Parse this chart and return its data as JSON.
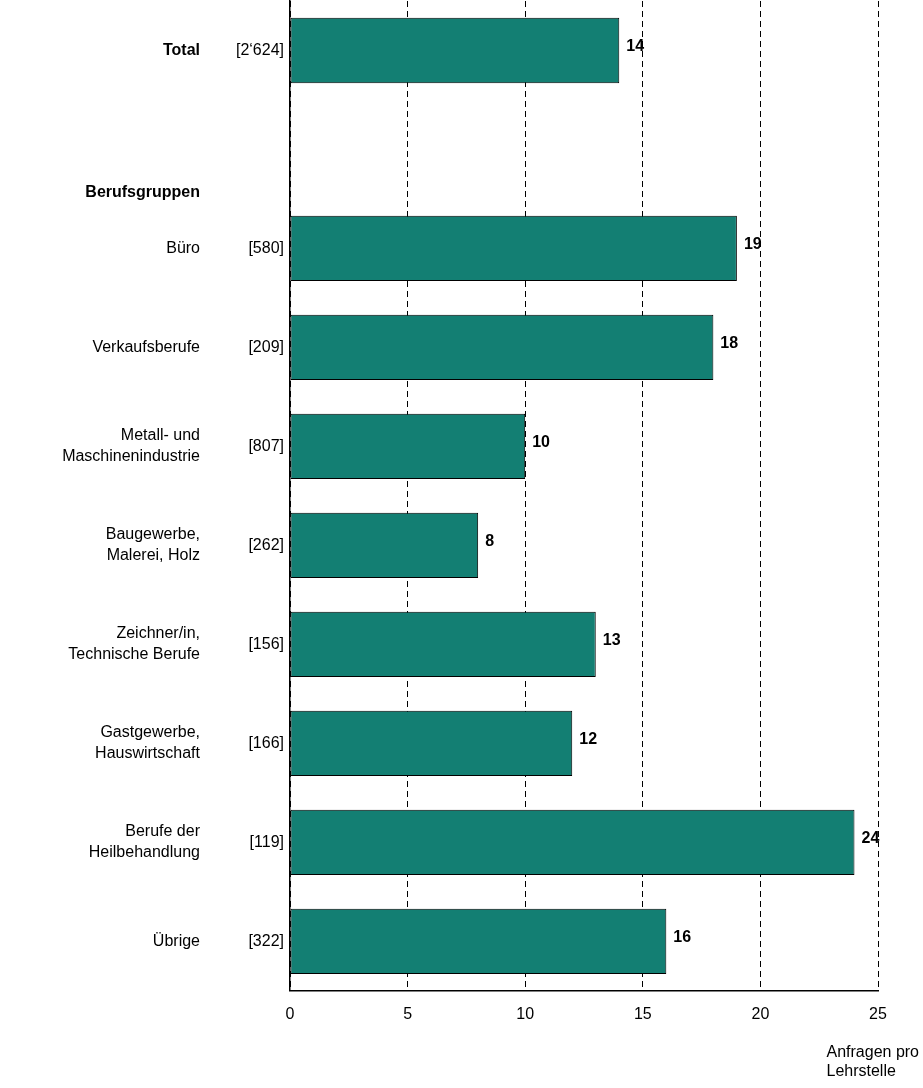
{
  "chart_data": {
    "type": "bar",
    "orientation": "horizontal",
    "categories": [
      "Total",
      null,
      "Büro",
      "Verkaufsberufe",
      "Metall- und\nMaschinenindustrie",
      "Baugewerbe,\nMalerei, Holz",
      "Zeichner/in,\nTechnische Berufe",
      "Gastgewerbe,\nHauswirtschaft",
      "Berufe der\nHeilbehandlung",
      "Übrige"
    ],
    "values": [
      14,
      null,
      19,
      18,
      10,
      8,
      13,
      12,
      24,
      16
    ],
    "color": "#137f73",
    "xlim": [
      0,
      25
    ],
    "xticks": [
      0,
      5,
      10,
      15,
      20,
      25
    ],
    "xlabel": "Anfragen pro Lehrstelle",
    "grid": "x",
    "legend": false,
    "data_labels": true,
    "annotations": [
      "Berufsgruppen",
      "[2‘624]",
      "[580]",
      "[209]",
      "[807]",
      "[262]",
      "[156]",
      "[166]",
      "[119]",
      "[322]"
    ]
  }
}
